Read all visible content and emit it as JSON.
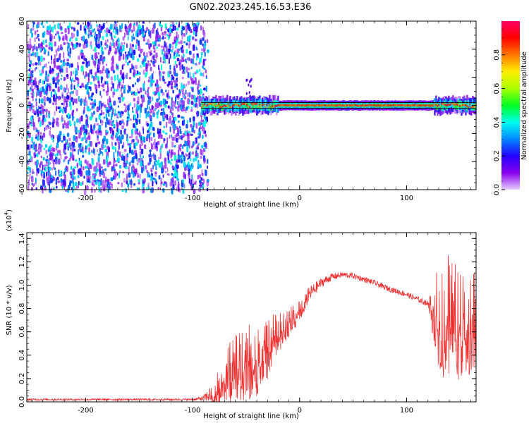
{
  "title": "GN02.2023.245.16.53.E36",
  "chart_data": [
    {
      "type": "heatmap",
      "xlabel": "Height of straight line (km)",
      "ylabel": "Frequency (Hz)",
      "xlim": [
        -255,
        165
      ],
      "ylim": [
        -60,
        60
      ],
      "xticks": [
        -200,
        -100,
        0,
        100
      ],
      "yticks": [
        -60,
        -40,
        -20,
        0,
        20,
        40,
        60
      ],
      "colorbar": {
        "label": "Normalized spectral amplitude",
        "range": [
          0,
          1
        ],
        "ticks": [
          0.0,
          0.2,
          0.4,
          0.6,
          0.8
        ],
        "colors": [
          "#e8ccff",
          "#8800ee",
          "#2200ff",
          "#0088ff",
          "#00ffee",
          "#00ff22",
          "#aaff00",
          "#ffee00",
          "#ff7700",
          "#ff0000",
          "#ff0066"
        ]
      },
      "reference_lines_hz": [
        -2,
        2
      ],
      "features": [
        {
          "name": "broadband noise",
          "x_range": [
            -255,
            -92
          ],
          "y_range": [
            -60,
            60
          ],
          "amplitude": 0.3
        },
        {
          "name": "signal band",
          "x_range": [
            -92,
            165
          ],
          "center_hz": 0,
          "peak_amplitude": 0.85
        },
        {
          "name": "excursion",
          "x": -48,
          "y_range": [
            5,
            20
          ],
          "amplitude": 0.15
        }
      ]
    },
    {
      "type": "line",
      "xlabel": "Height of straight line (km)",
      "ylabel": "SNR (10 * v/v)",
      "multiplier": "(x10^4)",
      "multiplier_base": "(x10",
      "multiplier_exp": "4",
      "xlim": [
        -255,
        165
      ],
      "ylim": [
        0,
        1.45
      ],
      "xticks": [
        -200,
        -100,
        0,
        100
      ],
      "yticks": [
        0.0,
        0.2,
        0.4,
        0.6,
        0.8,
        1.0,
        1.2,
        1.4
      ],
      "color": "#ee3333",
      "envelope": {
        "x": [
          -255,
          -100,
          -90,
          -80,
          -70,
          -60,
          -50,
          -40,
          -30,
          -20,
          -10,
          0,
          10,
          20,
          30,
          40,
          50,
          60,
          70,
          80,
          90,
          100,
          110,
          120,
          130,
          140,
          150,
          160,
          165
        ],
        "y": [
          0.02,
          0.02,
          0.03,
          0.08,
          0.22,
          0.3,
          0.36,
          0.38,
          0.48,
          0.6,
          0.68,
          0.8,
          0.93,
          1.02,
          1.07,
          1.09,
          1.08,
          1.05,
          1.02,
          0.98,
          0.95,
          0.92,
          0.88,
          0.84,
          0.78,
          0.75,
          0.72,
          0.7,
          0.7
        ],
        "noise": [
          0.01,
          0.01,
          0.03,
          0.12,
          0.3,
          0.35,
          0.4,
          0.38,
          0.32,
          0.2,
          0.15,
          0.12,
          0.08,
          0.05,
          0.04,
          0.03,
          0.03,
          0.03,
          0.03,
          0.03,
          0.03,
          0.03,
          0.03,
          0.03,
          0.6,
          0.65,
          0.6,
          0.55,
          0.5
        ]
      }
    }
  ]
}
